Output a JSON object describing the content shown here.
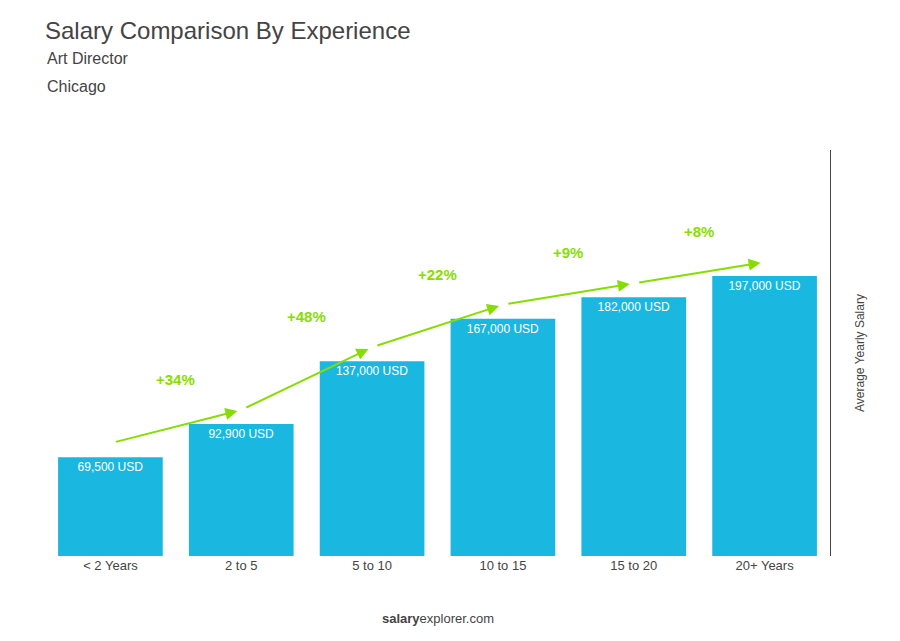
{
  "chart_data": {
    "type": "bar",
    "title": "Salary Comparison By Experience",
    "subtitle": "Art Director",
    "annotations": [
      "Chicago"
    ],
    "watermark": {
      "bold": "salary",
      "normal": "explorer.com"
    },
    "ylabel": "Average Yearly Salary",
    "categories": [
      "< 2 Years",
      "2 to 5",
      "5 to 10",
      "10 to 15",
      "15 to 20",
      "20+ Years"
    ],
    "values": [
      69500,
      92900,
      137000,
      167000,
      182000,
      197000
    ],
    "value_labels": [
      "69,500 USD",
      "92,900 USD",
      "137,000 USD",
      "167,000 USD",
      "182,000 USD",
      "197,000 USD"
    ],
    "data_labels": true,
    "change_labels": [
      "+34%",
      "+48%",
      "+22%",
      "+9%",
      "+8%"
    ],
    "change_color": "#88dd00",
    "color": "#1ab8e0",
    "ylim": [
      0,
      285650
    ],
    "yticks": [],
    "tick_labels": "x",
    "grid": false
  }
}
